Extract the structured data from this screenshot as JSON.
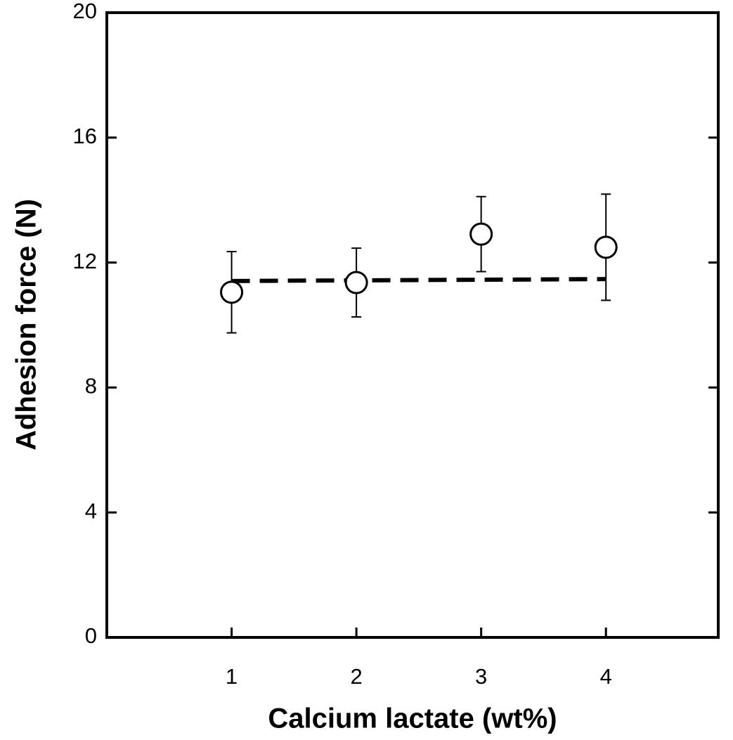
{
  "chart_data": {
    "type": "scatter",
    "xlabel": "Calcium lactate (wt%)",
    "ylabel": "Adhesion force (N)",
    "x": [
      1,
      2,
      3,
      4
    ],
    "series": [
      {
        "color": "#000000",
        "values": [
          11.05,
          11.36,
          12.91,
          12.49
        ],
        "errors": [
          1.3,
          1.1,
          1.2,
          1.7
        ]
      }
    ],
    "trend": {
      "x": [
        1,
        4
      ],
      "values": [
        11.41,
        11.47
      ],
      "color": "#000000"
    },
    "xlim": [
      0,
      4.9
    ],
    "xticks": [
      1,
      2,
      3,
      4
    ],
    "ylim": [
      0,
      20
    ],
    "yticks": [
      0,
      4,
      8,
      12,
      16,
      20
    ]
  }
}
